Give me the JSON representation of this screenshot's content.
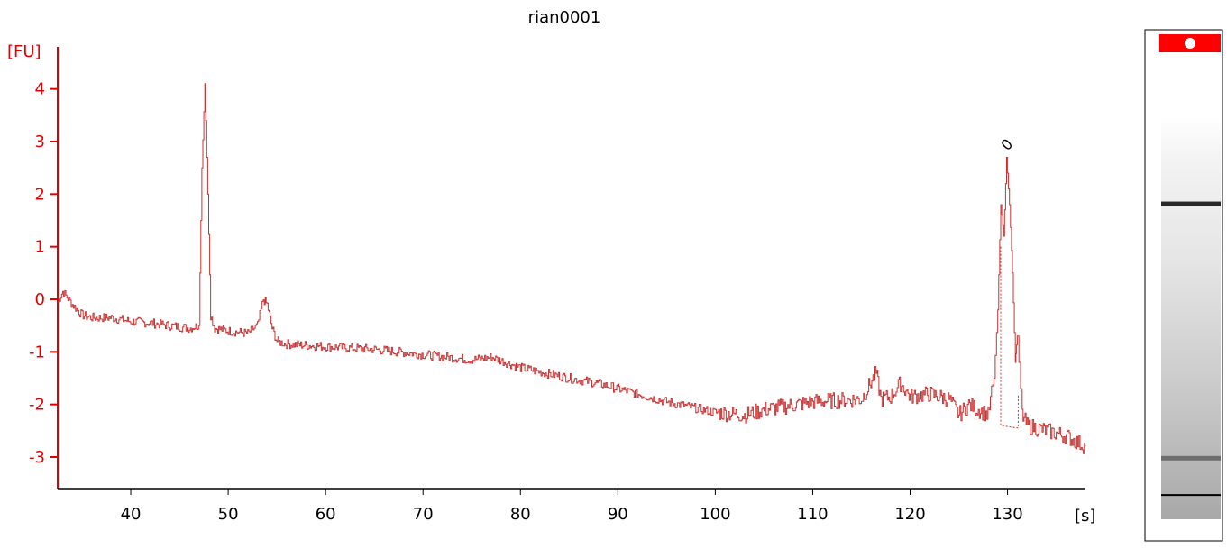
{
  "chart_data": {
    "type": "line",
    "title": "rian0001",
    "ylabel": "[FU]",
    "xlabel": "[s]",
    "xlim": [
      32.5,
      138
    ],
    "ylim": [
      -3.6,
      4.8
    ],
    "xticks": [
      40,
      50,
      60,
      70,
      80,
      90,
      100,
      110,
      120,
      130
    ],
    "yticks": [
      4,
      3,
      2,
      1,
      0,
      -1,
      -2,
      -3
    ],
    "grid": false,
    "colors": {
      "trace": "#c83232",
      "axis_y": "#e00000",
      "axis_x": "#000000",
      "lane_marker": "#ff0000"
    },
    "series": [
      {
        "x": [
          32.5,
          33,
          34,
          35,
          36,
          38,
          40,
          42,
          44,
          46,
          47,
          47.3,
          47.6,
          47.9,
          48.2,
          48.6,
          50,
          52,
          53,
          53.6,
          54,
          54.5,
          55,
          56,
          60,
          65,
          70,
          75,
          77,
          80,
          85,
          88,
          90,
          95,
          100,
          103,
          105,
          110,
          115,
          116.5,
          117,
          118,
          119,
          120,
          122,
          124,
          125,
          126,
          127,
          128,
          128.6,
          129,
          129.3,
          129.6,
          129.9,
          130.2,
          130.5,
          130.8,
          131,
          131.5,
          132,
          134,
          136,
          137,
          138
        ],
        "y": [
          -0.05,
          0.15,
          -0.1,
          -0.3,
          -0.35,
          -0.35,
          -0.42,
          -0.45,
          -0.5,
          -0.55,
          -0.5,
          2.5,
          4.1,
          2.0,
          -0.3,
          -0.55,
          -0.6,
          -0.65,
          -0.5,
          0.0,
          -0.1,
          -0.55,
          -0.8,
          -0.85,
          -0.9,
          -0.95,
          -1.05,
          -1.15,
          -1.1,
          -1.3,
          -1.5,
          -1.6,
          -1.7,
          -1.95,
          -2.15,
          -2.2,
          -2.1,
          -1.95,
          -1.9,
          -1.4,
          -1.9,
          -1.85,
          -1.6,
          -1.85,
          -1.8,
          -1.9,
          -2.2,
          -2.0,
          -2.1,
          -2.2,
          -1.5,
          -0.2,
          1.8,
          1.2,
          2.7,
          1.8,
          0.5,
          -1.2,
          -0.7,
          -2.2,
          -2.4,
          -2.5,
          -2.6,
          -2.7,
          -2.8
        ]
      }
    ],
    "peak_markers": [
      {
        "x": 129.9,
        "label": "0"
      }
    ]
  },
  "gel_lane": {
    "bands": [
      {
        "position": 0.22,
        "strength": 0.8
      },
      {
        "position": 0.85,
        "strength": 0.45
      },
      {
        "position": 0.94,
        "strength": 1.0
      }
    ]
  }
}
